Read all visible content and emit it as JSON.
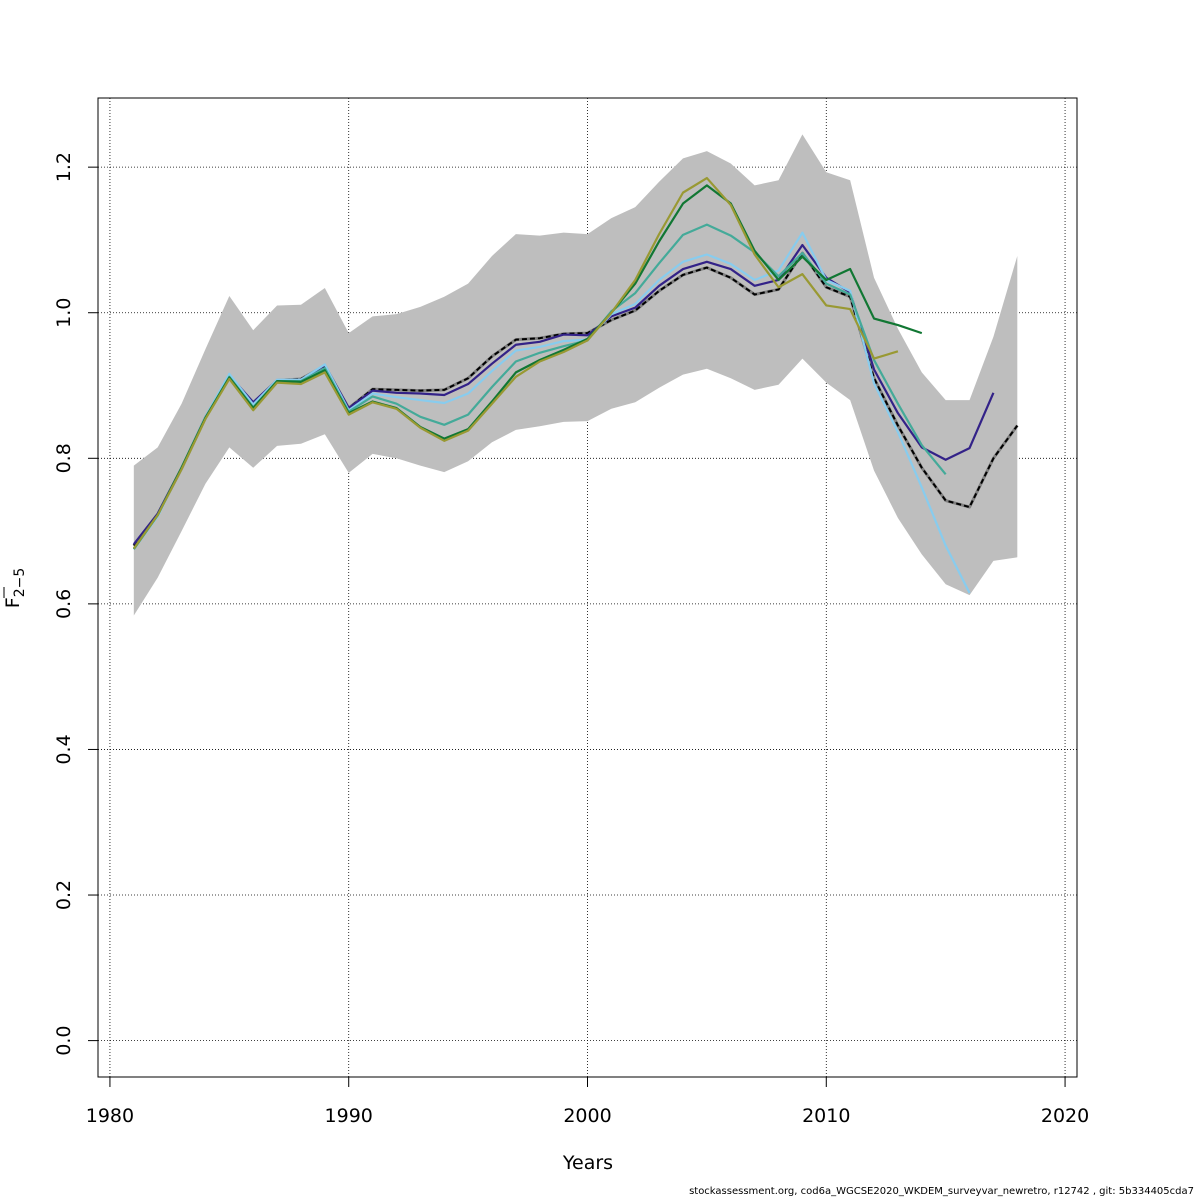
{
  "chart_data": {
    "type": "line",
    "xlabel": "Years",
    "ylabel": "F̅2−5",
    "ylabel_main": "F",
    "ylabel_sub": "2−5",
    "xlim": [
      1979.5,
      2020.5
    ],
    "ylim": [
      -0.05,
      1.295
    ],
    "x_ticks": [
      1980,
      1990,
      2000,
      2010,
      2020
    ],
    "x_tick_labels": [
      "1980",
      "1990",
      "2000",
      "2010",
      "2020"
    ],
    "y_ticks": [
      0.0,
      0.2,
      0.4,
      0.6,
      0.8,
      1.0,
      1.2
    ],
    "y_tick_labels": [
      "0.0",
      "0.2",
      "0.4",
      "0.6",
      "0.8",
      "1.0",
      "1.2"
    ],
    "grid": true,
    "confidence_band": {
      "color": "#bebebe",
      "x": [
        1981,
        1982,
        1983,
        1984,
        1985,
        1986,
        1987,
        1988,
        1989,
        1990,
        1991,
        1992,
        1993,
        1994,
        1995,
        1996,
        1997,
        1998,
        1999,
        2000,
        2001,
        2002,
        2003,
        2004,
        2005,
        2006,
        2007,
        2008,
        2009,
        2010,
        2011,
        2012,
        2013,
        2014,
        2015,
        2016,
        2017,
        2018
      ],
      "upper": [
        0.79,
        0.815,
        0.875,
        0.95,
        1.023,
        0.976,
        1.01,
        1.011,
        1.034,
        0.972,
        0.995,
        0.998,
        1.008,
        1.022,
        1.04,
        1.078,
        1.108,
        1.106,
        1.11,
        1.108,
        1.13,
        1.145,
        1.18,
        1.212,
        1.222,
        1.205,
        1.175,
        1.182,
        1.245,
        1.193,
        1.182,
        1.048,
        0.978,
        0.918,
        0.88,
        0.88,
        0.967,
        1.078
      ],
      "lower": [
        0.584,
        0.636,
        0.7,
        0.765,
        0.815,
        0.787,
        0.817,
        0.82,
        0.833,
        0.78,
        0.806,
        0.8,
        0.79,
        0.781,
        0.796,
        0.822,
        0.839,
        0.844,
        0.85,
        0.851,
        0.868,
        0.877,
        0.897,
        0.915,
        0.923,
        0.91,
        0.894,
        0.901,
        0.937,
        0.904,
        0.88,
        0.783,
        0.718,
        0.668,
        0.627,
        0.612,
        0.659,
        0.664
      ]
    },
    "series": [
      {
        "color": "#000000",
        "dashed": true,
        "x": [
          1981,
          1982,
          1983,
          1984,
          1985,
          1986,
          1987,
          1988,
          1989,
          1990,
          1991,
          1992,
          1993,
          1994,
          1995,
          1996,
          1997,
          1998,
          1999,
          2000,
          2001,
          2002,
          2003,
          2004,
          2005,
          2006,
          2007,
          2008,
          2009,
          2010,
          2011,
          2012,
          2013,
          2014,
          2015,
          2016,
          2017,
          2018
        ],
        "values": [
          0.68,
          0.723,
          0.786,
          0.856,
          0.913,
          0.876,
          0.907,
          0.909,
          0.927,
          0.869,
          0.895,
          0.894,
          0.893,
          0.894,
          0.91,
          0.94,
          0.963,
          0.965,
          0.971,
          0.972,
          0.99,
          1.003,
          1.03,
          1.052,
          1.062,
          1.048,
          1.025,
          1.032,
          1.082,
          1.035,
          1.022,
          0.91,
          0.845,
          0.787,
          0.742,
          0.733,
          0.8,
          0.845
        ]
      },
      {
        "color": "#332288",
        "dashed": false,
        "x": [
          1981,
          1982,
          1983,
          1984,
          1985,
          1986,
          1987,
          1988,
          1989,
          1990,
          1991,
          1992,
          1993,
          1994,
          1995,
          1996,
          1997,
          1998,
          1999,
          2000,
          2001,
          2002,
          2003,
          2004,
          2005,
          2006,
          2007,
          2008,
          2009,
          2010,
          2011,
          2012,
          2013,
          2014,
          2015,
          2016,
          2017
        ],
        "values": [
          0.682,
          0.724,
          0.787,
          0.856,
          0.914,
          0.877,
          0.907,
          0.908,
          0.928,
          0.869,
          0.893,
          0.89,
          0.889,
          0.887,
          0.902,
          0.93,
          0.956,
          0.96,
          0.97,
          0.969,
          0.995,
          1.007,
          1.037,
          1.06,
          1.07,
          1.06,
          1.037,
          1.045,
          1.093,
          1.048,
          1.028,
          0.922,
          0.862,
          0.815,
          0.798,
          0.814,
          0.89
        ]
      },
      {
        "color": "#88ccee",
        "dashed": false,
        "x": [
          1981,
          1982,
          1983,
          1984,
          1985,
          1986,
          1987,
          1988,
          1989,
          1990,
          1991,
          1992,
          1993,
          1994,
          1995,
          1996,
          1997,
          1998,
          1999,
          2000,
          2001,
          2002,
          2003,
          2004,
          2005,
          2006,
          2007,
          2008,
          2009,
          2010,
          2011,
          2012,
          2013,
          2014,
          2015,
          2016
        ],
        "values": [
          0.675,
          0.72,
          0.787,
          0.857,
          0.916,
          0.874,
          0.908,
          0.908,
          0.929,
          0.866,
          0.889,
          0.884,
          0.88,
          0.876,
          0.889,
          0.92,
          0.948,
          0.953,
          0.961,
          0.963,
          0.998,
          1.012,
          1.045,
          1.07,
          1.08,
          1.067,
          1.045,
          1.058,
          1.11,
          1.045,
          1.03,
          0.903,
          0.836,
          0.76,
          0.68,
          0.615
        ]
      },
      {
        "color": "#44aa99",
        "dashed": false,
        "x": [
          1981,
          1982,
          1983,
          1984,
          1985,
          1986,
          1987,
          1988,
          1989,
          1990,
          1991,
          1992,
          1993,
          1994,
          1995,
          1996,
          1997,
          1998,
          1999,
          2000,
          2001,
          2002,
          2003,
          2004,
          2005,
          2006,
          2007,
          2008,
          2009,
          2010,
          2011,
          2012,
          2013,
          2014,
          2015
        ],
        "values": [
          0.675,
          0.722,
          0.787,
          0.855,
          0.912,
          0.87,
          0.906,
          0.906,
          0.924,
          0.864,
          0.885,
          0.875,
          0.857,
          0.846,
          0.86,
          0.898,
          0.933,
          0.945,
          0.954,
          0.962,
          1.002,
          1.027,
          1.068,
          1.107,
          1.121,
          1.106,
          1.083,
          1.05,
          1.082,
          1.04,
          1.025,
          0.935,
          0.875,
          0.818,
          0.778
        ]
      },
      {
        "color": "#117733",
        "dashed": false,
        "x": [
          1981,
          1982,
          1983,
          1984,
          1985,
          1986,
          1987,
          1988,
          1989,
          1990,
          1991,
          1992,
          1993,
          1994,
          1995,
          1996,
          1997,
          1998,
          1999,
          2000,
          2001,
          2002,
          2003,
          2004,
          2005,
          2006,
          2007,
          2008,
          2009,
          2010,
          2011,
          2012,
          2013,
          2014
        ],
        "values": [
          0.676,
          0.722,
          0.787,
          0.856,
          0.911,
          0.869,
          0.906,
          0.905,
          0.921,
          0.862,
          0.878,
          0.869,
          0.843,
          0.827,
          0.84,
          0.878,
          0.918,
          0.935,
          0.949,
          0.964,
          1.0,
          1.04,
          1.098,
          1.15,
          1.175,
          1.15,
          1.085,
          1.045,
          1.077,
          1.045,
          1.06,
          0.992,
          0.983,
          0.972
        ]
      },
      {
        "color": "#999933",
        "dashed": false,
        "x": [
          1981,
          1982,
          1983,
          1984,
          1985,
          1986,
          1987,
          1988,
          1989,
          1990,
          1991,
          1992,
          1993,
          1994,
          1995,
          1996,
          1997,
          1998,
          1999,
          2000,
          2001,
          2002,
          2003,
          2004,
          2005,
          2006,
          2007,
          2008,
          2009,
          2010,
          2011,
          2012,
          2013
        ],
        "values": [
          0.676,
          0.722,
          0.785,
          0.854,
          0.909,
          0.866,
          0.904,
          0.902,
          0.918,
          0.86,
          0.877,
          0.868,
          0.842,
          0.824,
          0.838,
          0.875,
          0.912,
          0.933,
          0.946,
          0.962,
          1.0,
          1.045,
          1.108,
          1.165,
          1.185,
          1.148,
          1.08,
          1.035,
          1.053,
          1.01,
          1.005,
          0.937,
          0.947
        ]
      }
    ]
  },
  "footer": {
    "text": "stockassessment.org, cod6a_WGCSE2020_WKDEM_surveyvar_newretro, r12742 , git: 5b334405cda7"
  }
}
